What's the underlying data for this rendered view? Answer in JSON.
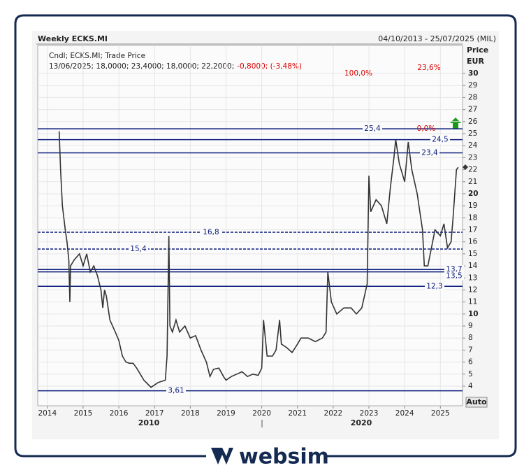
{
  "chart_data": {
    "type": "line",
    "title": "Weekly ECKS.MI",
    "date_range": "04/10/2013 - 25/07/2025 (MIL)",
    "info_line1": "Cndl; ECKS.MI; Trade Price",
    "info_line2": "13/06/2025; 18,0000; 23,4000; 18,0000; 22,2000;",
    "info_change": "-0,8000; (-3,48%)",
    "y_axis_label": "Price",
    "y_axis_unit": "EUR",
    "auto_button": "Auto",
    "decade_labels": [
      "2010",
      "2020"
    ],
    "xlim": [
      2013.73,
      2025.62
    ],
    "xticks": [
      2014,
      2015,
      2016,
      2017,
      2018,
      2019,
      2020,
      2021,
      2022,
      2023,
      2024,
      2025
    ],
    "ylim": [
      2.37,
      32.33
    ],
    "yticks": [
      4,
      5,
      6,
      7,
      8,
      9,
      10,
      11,
      12,
      13,
      14,
      15,
      16,
      17,
      18,
      19,
      20,
      21,
      22,
      23,
      24,
      25,
      26,
      27,
      28,
      29,
      30
    ],
    "grid": true,
    "series": [
      {
        "name": "ECKS.MI",
        "color": "#333333",
        "x": [
          2014.33,
          2014.37,
          2014.42,
          2014.5,
          2014.55,
          2014.6,
          2014.63,
          2014.65,
          2014.75,
          2014.9,
          2015.0,
          2015.1,
          2015.2,
          2015.3,
          2015.4,
          2015.5,
          2015.55,
          2015.6,
          2015.65,
          2015.75,
          2015.9,
          2016.0,
          2016.1,
          2016.2,
          2016.3,
          2016.4,
          2016.5,
          2016.6,
          2016.7,
          2016.8,
          2016.9,
          2017.0,
          2017.1,
          2017.3,
          2017.35,
          2017.4,
          2017.43,
          2017.5,
          2017.6,
          2017.7,
          2017.85,
          2018.0,
          2018.15,
          2018.3,
          2018.45,
          2018.55,
          2018.65,
          2018.8,
          2018.95,
          2019.0,
          2019.15,
          2019.3,
          2019.45,
          2019.6,
          2019.75,
          2019.9,
          2020.0,
          2020.05,
          2020.15,
          2020.3,
          2020.4,
          2020.5,
          2020.55,
          2020.7,
          2020.85,
          2021.0,
          2021.1,
          2021.3,
          2021.5,
          2021.7,
          2021.8,
          2021.85,
          2021.95,
          2022.1,
          2022.3,
          2022.5,
          2022.65,
          2022.8,
          2022.95,
          2023.0,
          2023.05,
          2023.2,
          2023.35,
          2023.5,
          2023.6,
          2023.7,
          2023.75,
          2023.85,
          2024.0,
          2024.1,
          2024.2,
          2024.35,
          2024.5,
          2024.55,
          2024.65,
          2024.75,
          2024.85,
          2025.0,
          2025.1,
          2025.2,
          2025.3,
          2025.35,
          2025.45,
          2025.5
        ],
        "values": [
          25.2,
          22,
          19,
          17,
          16,
          14.5,
          11,
          14,
          14.5,
          15,
          14,
          15,
          13.5,
          14,
          13.2,
          12,
          10.5,
          12,
          11.5,
          9.5,
          8.5,
          7.8,
          6.5,
          6,
          5.9,
          5.9,
          5.5,
          5,
          4.5,
          4.2,
          3.9,
          4.1,
          4.3,
          4.5,
          6.5,
          16.5,
          9,
          8.5,
          9.5,
          8.5,
          9,
          8,
          8.2,
          7,
          6,
          4.8,
          5.4,
          5.5,
          4.7,
          4.5,
          4.8,
          5,
          5.2,
          4.8,
          5,
          4.9,
          5.5,
          9.5,
          6.5,
          6.5,
          7,
          9.5,
          7.5,
          7.2,
          6.8,
          7.5,
          8,
          8,
          7.7,
          8,
          8.5,
          13.5,
          11,
          10,
          10.5,
          10.5,
          10,
          10.5,
          12.5,
          21.5,
          18.5,
          19.5,
          19,
          17.5,
          20.5,
          23,
          24.5,
          22.5,
          21,
          24.3,
          22,
          20,
          17,
          14,
          14,
          15.5,
          17,
          16.5,
          17.5,
          15.5,
          16,
          17.8,
          22,
          22.2
        ]
      }
    ],
    "levels": [
      {
        "value": 25.4,
        "label": "25,4",
        "style": "solid"
      },
      {
        "value": 24.5,
        "label": "24,5",
        "style": "solid"
      },
      {
        "value": 23.4,
        "label": "23,4",
        "style": "solid"
      },
      {
        "value": 16.8,
        "label": "16,8",
        "style": "dashed"
      },
      {
        "value": 15.4,
        "label": "15,4",
        "style": "dashed"
      },
      {
        "value": 13.7,
        "label": "13,7",
        "style": "solid"
      },
      {
        "value": 13.5,
        "label": "13,5",
        "style": "solid"
      },
      {
        "value": 12.3,
        "label": "12,3",
        "style": "solid"
      },
      {
        "value": 3.61,
        "label": "3,61",
        "style": "solid"
      }
    ],
    "fib_labels": [
      "0,0%",
      "100,0%",
      "23,6%"
    ],
    "brand": "websim"
  }
}
